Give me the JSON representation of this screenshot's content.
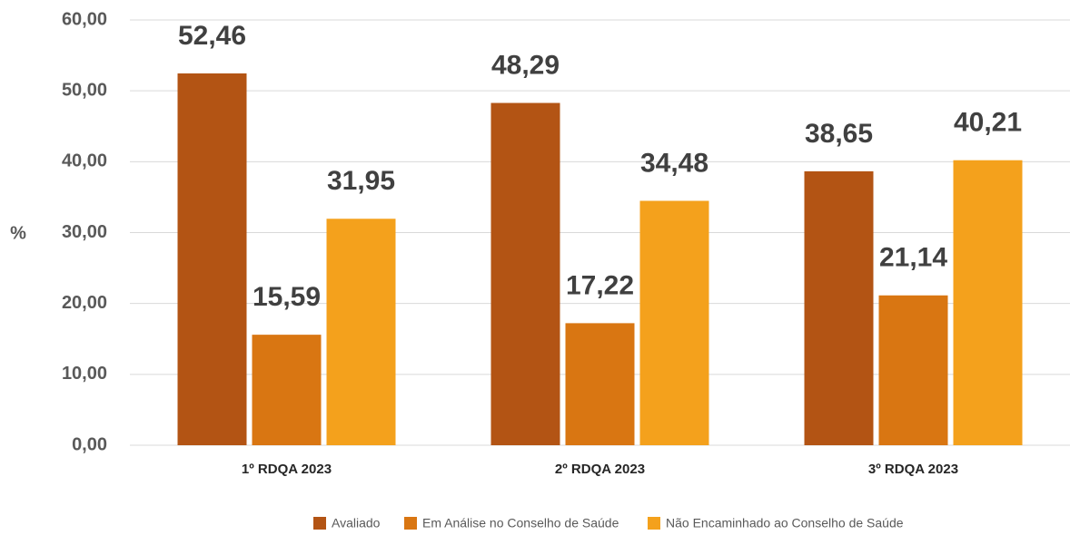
{
  "chart_data": {
    "type": "bar",
    "y_label": "%",
    "categories": [
      "1º RDQA 2023",
      "2º RDQA 2023",
      "3º RDQA 2023"
    ],
    "series": [
      {
        "name": "Avaliado",
        "color": "#b35414",
        "values": [
          52.46,
          48.29,
          38.65
        ],
        "value_labels": [
          "52,46",
          "48,29",
          "38,65"
        ]
      },
      {
        "name": "Em Análise no Conselho de Saúde",
        "color": "#d97612",
        "values": [
          15.59,
          17.22,
          21.14
        ],
        "value_labels": [
          "15,59",
          "17,22",
          "21,14"
        ]
      },
      {
        "name": "Não Encaminhado ao Conselho de Saúde",
        "color": "#f4a11c",
        "values": [
          31.95,
          34.48,
          40.21
        ],
        "value_labels": [
          "31,95",
          "34,48",
          "40,21"
        ]
      }
    ],
    "ylim": [
      0,
      60
    ],
    "yticks": [
      {
        "value": 0,
        "label": "0,00"
      },
      {
        "value": 10,
        "label": "10,00"
      },
      {
        "value": 20,
        "label": "20,00"
      },
      {
        "value": 30,
        "label": "30,00"
      },
      {
        "value": 40,
        "label": "40,00"
      },
      {
        "value": 50,
        "label": "50,00"
      },
      {
        "value": 60,
        "label": "60,00"
      }
    ],
    "grid": true,
    "legend": "bottom"
  }
}
